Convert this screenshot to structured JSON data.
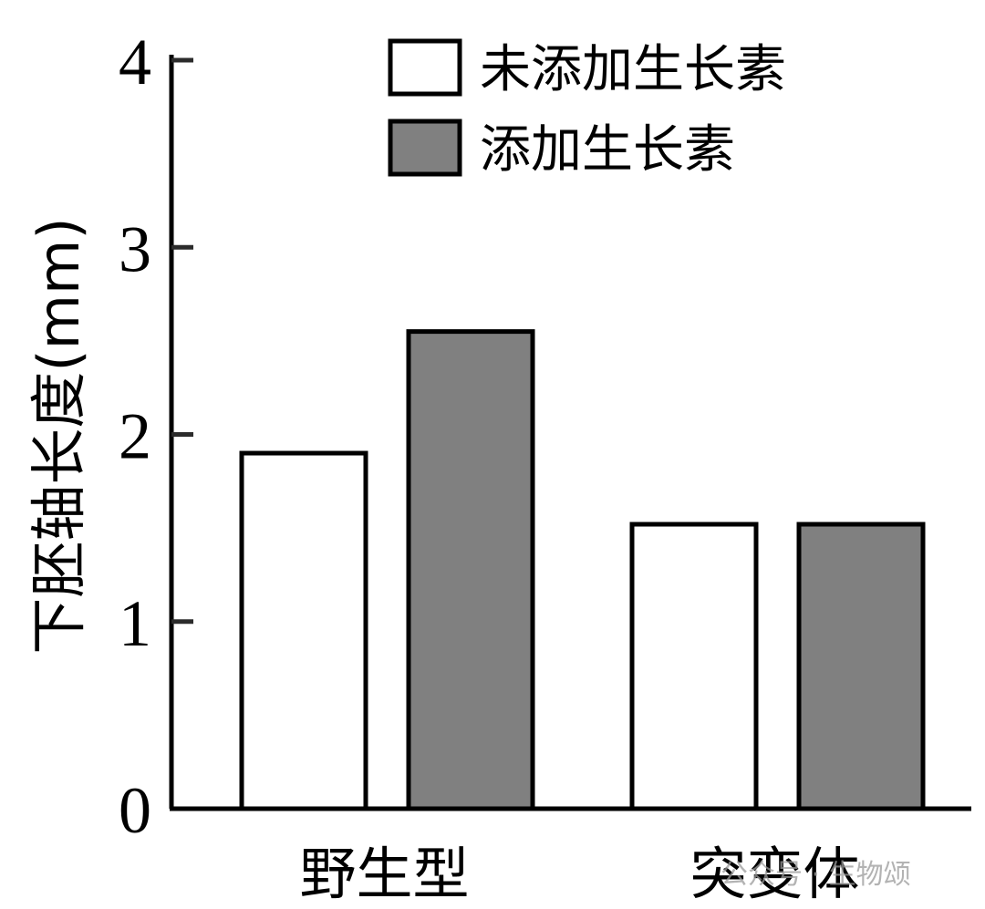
{
  "chart_data": {
    "type": "bar",
    "ylabel": "下胚轴长度(mm)",
    "xlabel": "",
    "categories": [
      "野生型",
      "突变体"
    ],
    "ylim": [
      0,
      4
    ],
    "yticks": [
      0,
      1,
      2,
      3,
      4
    ],
    "series": [
      {
        "name": "未添加生长素",
        "color": "#ffffff",
        "values": [
          1.9,
          1.52
        ]
      },
      {
        "name": "添加生长素",
        "color": "#808080",
        "values": [
          2.55,
          1.52
        ]
      }
    ],
    "legend_position": "top-right",
    "grid": false
  },
  "watermark": {
    "text": "公众号 · 生物颂"
  }
}
